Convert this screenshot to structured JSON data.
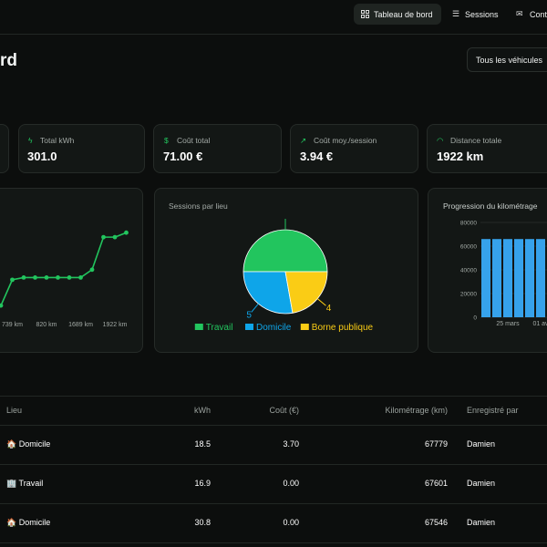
{
  "nav": {
    "items": [
      "Tableau de bord",
      "Sessions",
      "Cont"
    ]
  },
  "header": {
    "title": "rd",
    "vehicle_filter": "Tous les véhicules"
  },
  "stats": [
    {
      "label": "Total kWh",
      "value": "301.0"
    },
    {
      "label": "Coût total",
      "value": "71.00 €"
    },
    {
      "label": "Coût moy./session",
      "value": "3.94 €"
    },
    {
      "label": "Distance totale",
      "value": "1922 km"
    }
  ],
  "chart_data": [
    {
      "type": "line",
      "categories": [
        null,
        "739 km",
        null,
        null,
        "820 km",
        null,
        null,
        "1689 km",
        null,
        null,
        "1922 km",
        null
      ],
      "values": [
        8,
        31,
        33,
        33,
        33,
        33,
        33,
        33,
        40,
        69,
        69,
        73
      ],
      "color": "#22c55e",
      "ylim": [
        0,
        100
      ]
    },
    {
      "type": "pie",
      "title": "Sessions par lieu",
      "categories": [
        "Travail",
        "Domicile",
        "Borne publique"
      ],
      "values": [
        9,
        5,
        4
      ],
      "value_labels": [
        null,
        "5",
        "4"
      ],
      "colors": [
        "#22c55e",
        "#0ea5e9",
        "#facc15"
      ]
    },
    {
      "type": "bar",
      "title": "Progression du kilométrage",
      "categories": [
        null,
        null,
        "25 mars",
        null,
        null,
        "01 av",
        null
      ],
      "values": [
        66000,
        66000,
        66000,
        66000,
        66000,
        66000,
        66000
      ],
      "color": "#36a2eb",
      "ylim": [
        0,
        80000
      ],
      "yticks": [
        0,
        20000,
        40000,
        60000,
        80000
      ],
      "grid": true
    }
  ],
  "table": {
    "headers": [
      "Lieu",
      "kWh",
      "Coût (€)",
      "Kilométrage (km)",
      "Enregistré par"
    ],
    "rows": [
      [
        "🏠 Domicile",
        "18.5",
        "3.70",
        "67779",
        "Damien"
      ],
      [
        "🏢 Travail",
        "16.9",
        "0.00",
        "67601",
        "Damien"
      ],
      [
        "🏠 Domicile",
        "30.8",
        "0.00",
        "67546",
        "Damien"
      ]
    ]
  }
}
